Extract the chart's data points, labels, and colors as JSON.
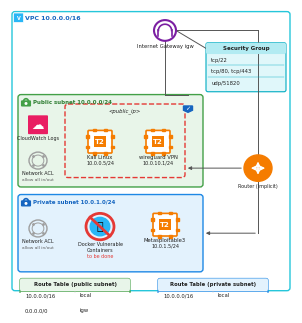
{
  "title": "VPC 10.0.0.0/16",
  "igw_label": "Internet Gateway igw",
  "security_group_title": "Security Group",
  "security_group_rules": [
    "tcp/22",
    "tcp/80, tcp/443",
    "udp/51820"
  ],
  "public_subnet_label": "Public subnet 10.0.0.0/24",
  "public_subnet_bg": "#e8f5e9",
  "public_subnet_border": "#43a047",
  "private_subnet_label": "Private subnet 10.0.1.0/24",
  "private_subnet_bg": "#e3f2fd",
  "private_subnet_border": "#1e88e5",
  "cloudwatch_label": "CloudWatch Logs",
  "kali_label": "Kali Linux",
  "kali_ip": "10.0.0.5/24",
  "wireguard_label": "wireguard VPN",
  "wireguard_ip": "10.0.10.1/24",
  "public_ip_label": "<public_ip>",
  "network_acl_label": "Network ACL",
  "network_acl_sub": "allow all in/out",
  "docker_label1": "Docker Vulnerable",
  "docker_label2": "Containers",
  "docker_sub": "to be done",
  "metasploitable_label": "Metasploitable3",
  "metasploitable_ip": "10.0.1.5/24",
  "router_label": "Router (implicit)",
  "route_table_pub_title": "Route Table (public subnet)",
  "route_table_pub_rows": [
    [
      "10.0.0.0/16",
      "local"
    ],
    [
      "0.0.0.0/0",
      "igw"
    ]
  ],
  "route_table_priv_title": "Route Table (private subnet)",
  "route_table_priv_rows": [
    [
      "10.0.0.0/16",
      "local"
    ]
  ],
  "igw_color": "#7b1fa2",
  "orange": "#f57c00",
  "green_lock": "#43a047",
  "blue_lock": "#1565c0",
  "pink": "#e91e63",
  "dashed_border": "#e53935",
  "bg_color": "#ffffff",
  "text_dark": "#212121",
  "text_green": "#2e7d32",
  "text_blue": "#1565c0",
  "sg_bg": "#e0f7fa",
  "sg_border": "#00acc1",
  "vpc_border": "#26c6da",
  "line_color": "#555555"
}
